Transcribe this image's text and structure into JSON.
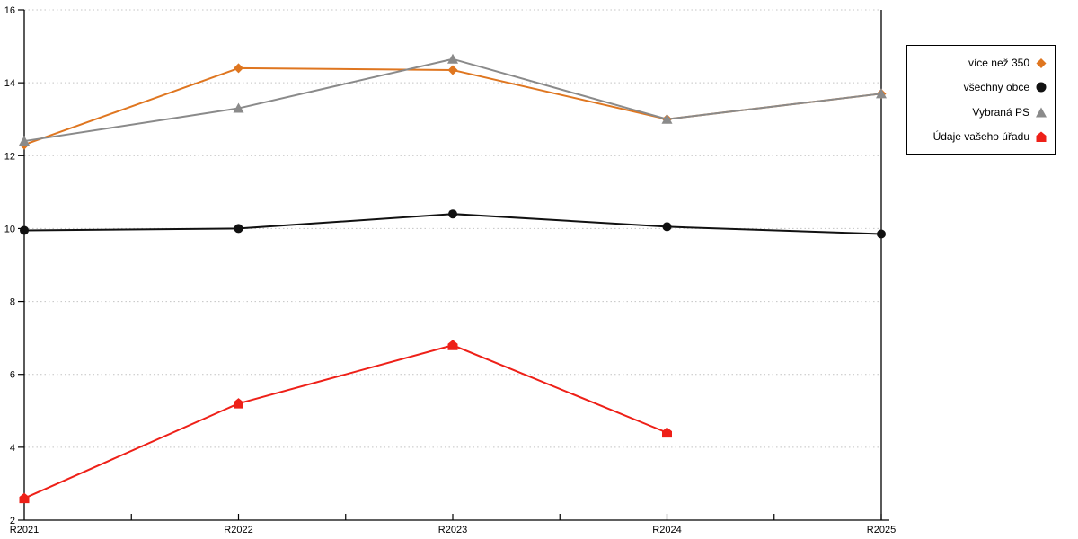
{
  "chart_data": {
    "type": "line",
    "title": "",
    "xlabel": "",
    "ylabel": "",
    "categories": [
      "R2021",
      "R2022",
      "R2023",
      "R2024",
      "R2025"
    ],
    "series": [
      {
        "name": "více než 350",
        "color": "#DF7620",
        "marker": "diamond",
        "values": [
          12.3,
          14.4,
          14.35,
          13.0,
          13.7
        ]
      },
      {
        "name": "všechny obce",
        "color": "#111111",
        "marker": "circle",
        "values": [
          9.95,
          10.0,
          10.4,
          10.05,
          9.85
        ]
      },
      {
        "name": "Vybraná PS",
        "color": "#8A8A8A",
        "marker": "triangle",
        "values": [
          12.4,
          13.3,
          14.65,
          13.0,
          13.7
        ]
      },
      {
        "name": "Údaje vašeho úřadu",
        "color": "#EE2018",
        "marker": "pentagon",
        "values": [
          2.6,
          5.2,
          6.8,
          4.4,
          null
        ]
      }
    ],
    "ylim": [
      2,
      16
    ],
    "yticks": [
      2,
      4,
      6,
      8,
      10,
      12,
      14,
      16
    ],
    "grid": "horizontal-dashed",
    "grid_color": "#c4c4c4",
    "axis_color": "#000000",
    "legend_position": "right"
  }
}
